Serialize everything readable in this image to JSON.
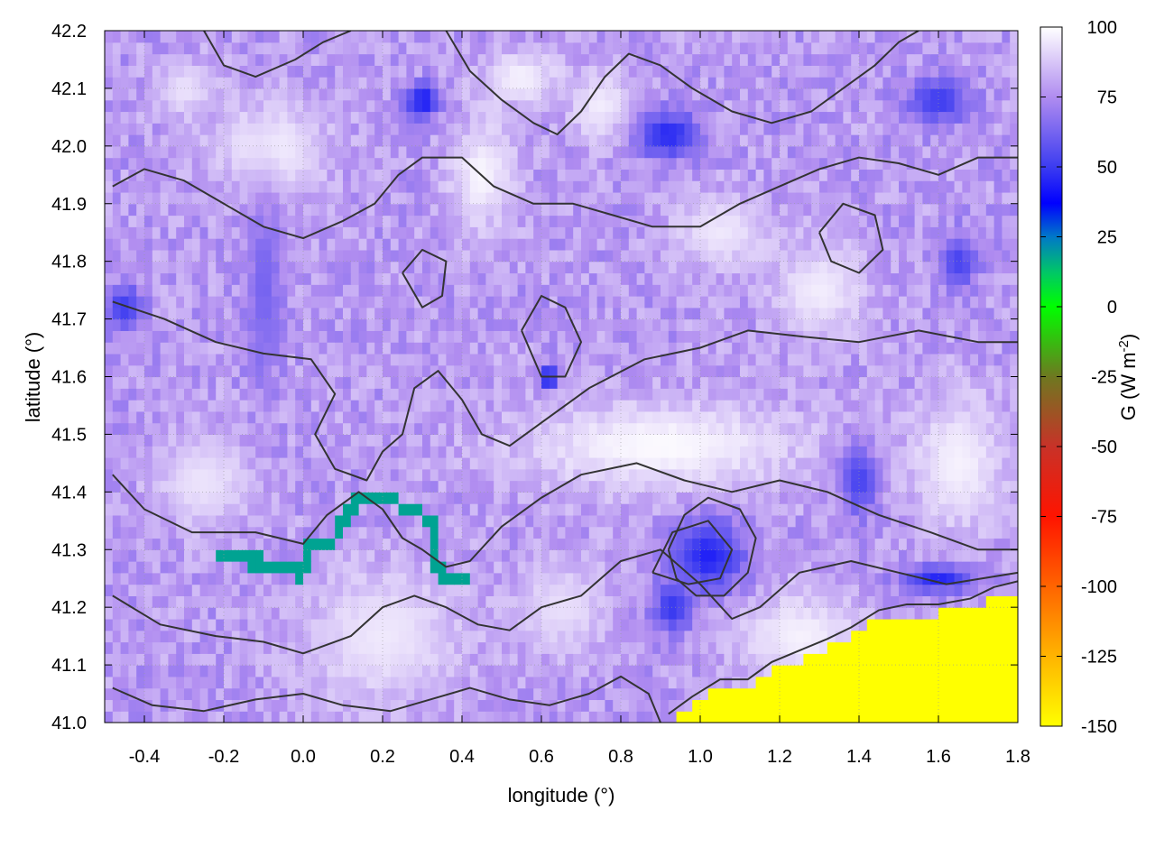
{
  "chart_data": {
    "type": "heatmap",
    "xlabel": "longitude (°)",
    "ylabel": "latitude (°)",
    "xlim": [
      -0.5,
      1.8
    ],
    "ylim": [
      41.0,
      42.2
    ],
    "x_ticks": [
      "-0.4",
      "-0.2",
      "0.0",
      "0.2",
      "0.4",
      "0.6",
      "0.8",
      "1.0",
      "1.2",
      "1.4",
      "1.6",
      "1.8"
    ],
    "x_tick_values": [
      -0.4,
      -0.2,
      0.0,
      0.2,
      0.4,
      0.6,
      0.8,
      1.0,
      1.2,
      1.4,
      1.6,
      1.8
    ],
    "y_ticks": [
      "41.0",
      "41.1",
      "41.2",
      "41.3",
      "41.4",
      "41.5",
      "41.6",
      "41.7",
      "41.8",
      "41.9",
      "42.0",
      "42.1",
      "42.2"
    ],
    "y_tick_values": [
      41.0,
      41.1,
      41.2,
      41.3,
      41.4,
      41.5,
      41.6,
      41.7,
      41.8,
      41.9,
      42.0,
      42.1,
      42.2
    ],
    "grid": true,
    "colorbar": {
      "label_main": "G (W m",
      "label_sup": "-2",
      "label_end": ")",
      "range": [
        -150,
        100
      ],
      "ticks": [
        "100",
        "75",
        "50",
        "25",
        "0",
        "-25",
        "-50",
        "-75",
        "-100",
        "-125",
        "-150"
      ],
      "tick_values": [
        100,
        75,
        50,
        25,
        0,
        -25,
        -50,
        -75,
        -100,
        -125,
        -150
      ],
      "stops": [
        {
          "value": 100,
          "color": "#ffffff"
        },
        {
          "value": 75,
          "color": "#b08cf0"
        },
        {
          "value": 50,
          "color": "#3c3cf0"
        },
        {
          "value": 37,
          "color": "#0000ff"
        },
        {
          "value": 25,
          "color": "#0078c8"
        },
        {
          "value": 12,
          "color": "#00c864"
        },
        {
          "value": 0,
          "color": "#00ff00"
        },
        {
          "value": -25,
          "color": "#6e7820"
        },
        {
          "value": -50,
          "color": "#c83228"
        },
        {
          "value": -75,
          "color": "#ff1400"
        },
        {
          "value": -100,
          "color": "#ff6400"
        },
        {
          "value": -125,
          "color": "#ffb400"
        },
        {
          "value": -150,
          "color": "#ffff00"
        }
      ]
    },
    "field": {
      "background_value": 78,
      "features": [
        {
          "lon": -0.08,
          "lat": 42.0,
          "rlon": 0.18,
          "rlat": 0.1,
          "value": 96
        },
        {
          "lon": -0.3,
          "lat": 42.1,
          "rlon": 0.09,
          "rlat": 0.06,
          "value": 94
        },
        {
          "lon": 0.45,
          "lat": 41.95,
          "rlon": 0.1,
          "rlat": 0.12,
          "value": 98
        },
        {
          "lon": 0.55,
          "lat": 42.12,
          "rlon": 0.12,
          "rlat": 0.06,
          "value": 97
        },
        {
          "lon": 0.75,
          "lat": 42.07,
          "rlon": 0.1,
          "rlat": 0.08,
          "value": 96
        },
        {
          "lon": 0.9,
          "lat": 41.48,
          "rlon": 0.45,
          "rlat": 0.1,
          "value": 99
        },
        {
          "lon": 1.3,
          "lat": 41.75,
          "rlon": 0.15,
          "rlat": 0.1,
          "value": 96
        },
        {
          "lon": 1.05,
          "lat": 41.85,
          "rlon": 0.15,
          "rlat": 0.08,
          "value": 95
        },
        {
          "lon": 0.2,
          "lat": 41.15,
          "rlon": 0.25,
          "rlat": 0.15,
          "value": 95
        },
        {
          "lon": -0.25,
          "lat": 41.42,
          "rlon": 0.15,
          "rlat": 0.1,
          "value": 94
        },
        {
          "lon": 1.65,
          "lat": 41.45,
          "rlon": 0.15,
          "rlat": 0.15,
          "value": 97
        },
        {
          "lon": 1.25,
          "lat": 41.15,
          "rlon": 0.2,
          "rlat": 0.1,
          "value": 97
        },
        {
          "lon": 0.65,
          "lat": 41.2,
          "rlon": 0.15,
          "rlat": 0.1,
          "value": 93
        },
        {
          "lon": 1.02,
          "lat": 41.29,
          "rlon": 0.12,
          "rlat": 0.08,
          "value": 44
        },
        {
          "lon": 0.93,
          "lat": 41.2,
          "rlon": 0.06,
          "rlat": 0.05,
          "value": 48
        },
        {
          "lon": 0.92,
          "lat": 42.02,
          "rlon": 0.1,
          "rlat": 0.05,
          "value": 45
        },
        {
          "lon": 0.3,
          "lat": 42.08,
          "rlon": 0.05,
          "rlat": 0.035,
          "value": 40
        },
        {
          "lon": 1.6,
          "lat": 42.08,
          "rlon": 0.1,
          "rlat": 0.05,
          "value": 50
        },
        {
          "lon": 1.4,
          "lat": 41.42,
          "rlon": 0.06,
          "rlat": 0.08,
          "value": 52
        },
        {
          "lon": 1.65,
          "lat": 41.8,
          "rlon": 0.06,
          "rlat": 0.06,
          "value": 52
        },
        {
          "lon": -0.45,
          "lat": 41.72,
          "rlon": 0.06,
          "rlat": 0.05,
          "value": 50
        },
        {
          "lon": 0.62,
          "lat": 41.6,
          "rlon": 0.03,
          "rlat": 0.02,
          "value": 30
        },
        {
          "lon": 1.6,
          "lat": 41.25,
          "rlon": 0.12,
          "rlat": 0.03,
          "value": 45
        },
        {
          "lon": -0.1,
          "lat": 41.75,
          "rlon": 0.05,
          "rlat": 0.2,
          "value": 62
        }
      ],
      "river": [
        [
          -0.2,
          41.29
        ],
        [
          -0.12,
          41.28
        ],
        [
          -0.05,
          41.27
        ],
        [
          0.0,
          41.26
        ],
        [
          0.02,
          41.31
        ],
        [
          0.06,
          41.3
        ],
        [
          0.09,
          41.33
        ],
        [
          0.11,
          41.37
        ],
        [
          0.14,
          41.39
        ],
        [
          0.2,
          41.39
        ],
        [
          0.24,
          41.38
        ],
        [
          0.3,
          41.36
        ],
        [
          0.33,
          41.34
        ],
        [
          0.33,
          41.29
        ],
        [
          0.36,
          41.24
        ],
        [
          0.4,
          41.25
        ]
      ],
      "coast": [
        [
          0.92,
          41.0
        ],
        [
          0.98,
          41.03
        ],
        [
          1.05,
          41.06
        ],
        [
          1.12,
          41.06
        ],
        [
          1.18,
          41.09
        ],
        [
          1.25,
          41.11
        ],
        [
          1.32,
          41.13
        ],
        [
          1.38,
          41.15
        ],
        [
          1.45,
          41.18
        ],
        [
          1.52,
          41.19
        ],
        [
          1.6,
          41.19
        ],
        [
          1.68,
          41.2
        ],
        [
          1.74,
          41.22
        ],
        [
          1.8,
          41.23
        ]
      ],
      "sea_value": -150,
      "contours": [
        [
          [
            -0.48,
            41.73
          ],
          [
            -0.35,
            41.7
          ],
          [
            -0.22,
            41.66
          ],
          [
            -0.1,
            41.64
          ],
          [
            0.02,
            41.63
          ],
          [
            0.08,
            41.57
          ],
          [
            0.03,
            41.5
          ],
          [
            0.08,
            41.44
          ],
          [
            0.16,
            41.42
          ],
          [
            0.2,
            41.47
          ],
          [
            0.25,
            41.5
          ],
          [
            0.28,
            41.58
          ],
          [
            0.34,
            41.61
          ],
          [
            0.4,
            41.56
          ],
          [
            0.45,
            41.5
          ],
          [
            0.52,
            41.48
          ],
          [
            0.6,
            41.52
          ],
          [
            0.72,
            41.58
          ],
          [
            0.86,
            41.63
          ],
          [
            1.0,
            41.65
          ],
          [
            1.12,
            41.68
          ],
          [
            1.25,
            41.67
          ],
          [
            1.4,
            41.66
          ],
          [
            1.55,
            41.68
          ],
          [
            1.7,
            41.66
          ],
          [
            1.8,
            41.66
          ]
        ],
        [
          [
            -0.48,
            41.43
          ],
          [
            -0.4,
            41.37
          ],
          [
            -0.28,
            41.33
          ],
          [
            -0.12,
            41.33
          ],
          [
            0.0,
            41.31
          ],
          [
            0.06,
            41.36
          ],
          [
            0.14,
            41.4
          ],
          [
            0.2,
            41.37
          ],
          [
            0.25,
            41.32
          ],
          [
            0.3,
            41.3
          ],
          [
            0.36,
            41.27
          ],
          [
            0.42,
            41.28
          ],
          [
            0.5,
            41.34
          ],
          [
            0.6,
            41.39
          ],
          [
            0.7,
            41.43
          ],
          [
            0.84,
            41.45
          ],
          [
            0.96,
            41.42
          ],
          [
            1.08,
            41.4
          ],
          [
            1.2,
            41.42
          ],
          [
            1.32,
            41.4
          ],
          [
            1.45,
            41.36
          ],
          [
            1.58,
            41.33
          ],
          [
            1.7,
            41.3
          ],
          [
            1.8,
            41.3
          ]
        ],
        [
          [
            -0.48,
            41.22
          ],
          [
            -0.36,
            41.17
          ],
          [
            -0.22,
            41.15
          ],
          [
            -0.1,
            41.14
          ],
          [
            0.0,
            41.12
          ],
          [
            0.12,
            41.15
          ],
          [
            0.2,
            41.2
          ],
          [
            0.28,
            41.22
          ],
          [
            0.36,
            41.2
          ],
          [
            0.44,
            41.17
          ],
          [
            0.52,
            41.16
          ],
          [
            0.6,
            41.2
          ],
          [
            0.7,
            41.22
          ],
          [
            0.8,
            41.28
          ],
          [
            0.9,
            41.3
          ],
          [
            1.0,
            41.24
          ],
          [
            1.08,
            41.18
          ],
          [
            1.15,
            41.2
          ],
          [
            1.25,
            41.26
          ],
          [
            1.38,
            41.28
          ],
          [
            1.5,
            41.26
          ],
          [
            1.62,
            41.24
          ],
          [
            1.8,
            41.26
          ]
        ],
        [
          [
            -0.48,
            41.06
          ],
          [
            -0.38,
            41.03
          ],
          [
            -0.25,
            41.02
          ],
          [
            -0.12,
            41.04
          ],
          [
            0.0,
            41.05
          ],
          [
            0.1,
            41.03
          ],
          [
            0.22,
            41.02
          ],
          [
            0.32,
            41.04
          ],
          [
            0.42,
            41.06
          ],
          [
            0.52,
            41.04
          ],
          [
            0.62,
            41.03
          ],
          [
            0.72,
            41.05
          ],
          [
            0.8,
            41.08
          ],
          [
            0.87,
            41.05
          ],
          [
            0.9,
            41.0
          ]
        ],
        [
          [
            -0.48,
            41.93
          ],
          [
            -0.4,
            41.96
          ],
          [
            -0.3,
            41.94
          ],
          [
            -0.2,
            41.9
          ],
          [
            -0.1,
            41.86
          ],
          [
            0.0,
            41.84
          ],
          [
            0.1,
            41.87
          ],
          [
            0.18,
            41.9
          ],
          [
            0.24,
            41.95
          ],
          [
            0.3,
            41.98
          ],
          [
            0.4,
            41.98
          ],
          [
            0.48,
            41.93
          ],
          [
            0.58,
            41.9
          ],
          [
            0.68,
            41.9
          ],
          [
            0.78,
            41.88
          ],
          [
            0.88,
            41.86
          ],
          [
            1.0,
            41.86
          ],
          [
            1.1,
            41.9
          ],
          [
            1.2,
            41.93
          ],
          [
            1.3,
            41.96
          ],
          [
            1.4,
            41.98
          ],
          [
            1.5,
            41.97
          ],
          [
            1.6,
            41.95
          ],
          [
            1.7,
            41.98
          ],
          [
            1.8,
            41.98
          ]
        ],
        [
          [
            -0.25,
            42.2
          ],
          [
            -0.2,
            42.14
          ],
          [
            -0.12,
            42.12
          ],
          [
            -0.02,
            42.15
          ],
          [
            0.05,
            42.18
          ],
          [
            0.12,
            42.2
          ]
        ],
        [
          [
            0.36,
            42.2
          ],
          [
            0.42,
            42.13
          ],
          [
            0.5,
            42.08
          ],
          [
            0.58,
            42.04
          ],
          [
            0.64,
            42.02
          ],
          [
            0.7,
            42.06
          ],
          [
            0.76,
            42.12
          ],
          [
            0.82,
            42.16
          ],
          [
            0.9,
            42.14
          ],
          [
            0.98,
            42.1
          ],
          [
            1.08,
            42.06
          ],
          [
            1.18,
            42.04
          ],
          [
            1.28,
            42.06
          ],
          [
            1.36,
            42.1
          ],
          [
            1.44,
            42.14
          ],
          [
            1.5,
            42.18
          ],
          [
            1.55,
            42.2
          ]
        ],
        [
          [
            0.92,
            41.3
          ],
          [
            0.96,
            41.36
          ],
          [
            1.02,
            41.39
          ],
          [
            1.1,
            41.37
          ],
          [
            1.14,
            41.32
          ],
          [
            1.12,
            41.26
          ],
          [
            1.06,
            41.22
          ],
          [
            0.99,
            41.22
          ],
          [
            0.94,
            41.25
          ],
          [
            0.92,
            41.3
          ]
        ],
        [
          [
            0.88,
            41.26
          ],
          [
            0.93,
            41.33
          ],
          [
            1.02,
            41.35
          ],
          [
            1.08,
            41.3
          ],
          [
            1.05,
            41.25
          ],
          [
            0.97,
            41.24
          ],
          [
            0.88,
            41.26
          ]
        ],
        [
          [
            0.55,
            41.68
          ],
          [
            0.6,
            41.74
          ],
          [
            0.66,
            41.72
          ],
          [
            0.7,
            41.66
          ],
          [
            0.66,
            41.6
          ],
          [
            0.6,
            41.6
          ],
          [
            0.55,
            41.68
          ]
        ],
        [
          [
            1.3,
            41.85
          ],
          [
            1.36,
            41.9
          ],
          [
            1.44,
            41.88
          ],
          [
            1.46,
            41.82
          ],
          [
            1.4,
            41.78
          ],
          [
            1.33,
            41.8
          ],
          [
            1.3,
            41.85
          ]
        ],
        [
          [
            0.25,
            41.78
          ],
          [
            0.3,
            41.82
          ],
          [
            0.36,
            41.8
          ],
          [
            0.35,
            41.74
          ],
          [
            0.3,
            41.72
          ],
          [
            0.25,
            41.78
          ]
        ]
      ]
    }
  }
}
